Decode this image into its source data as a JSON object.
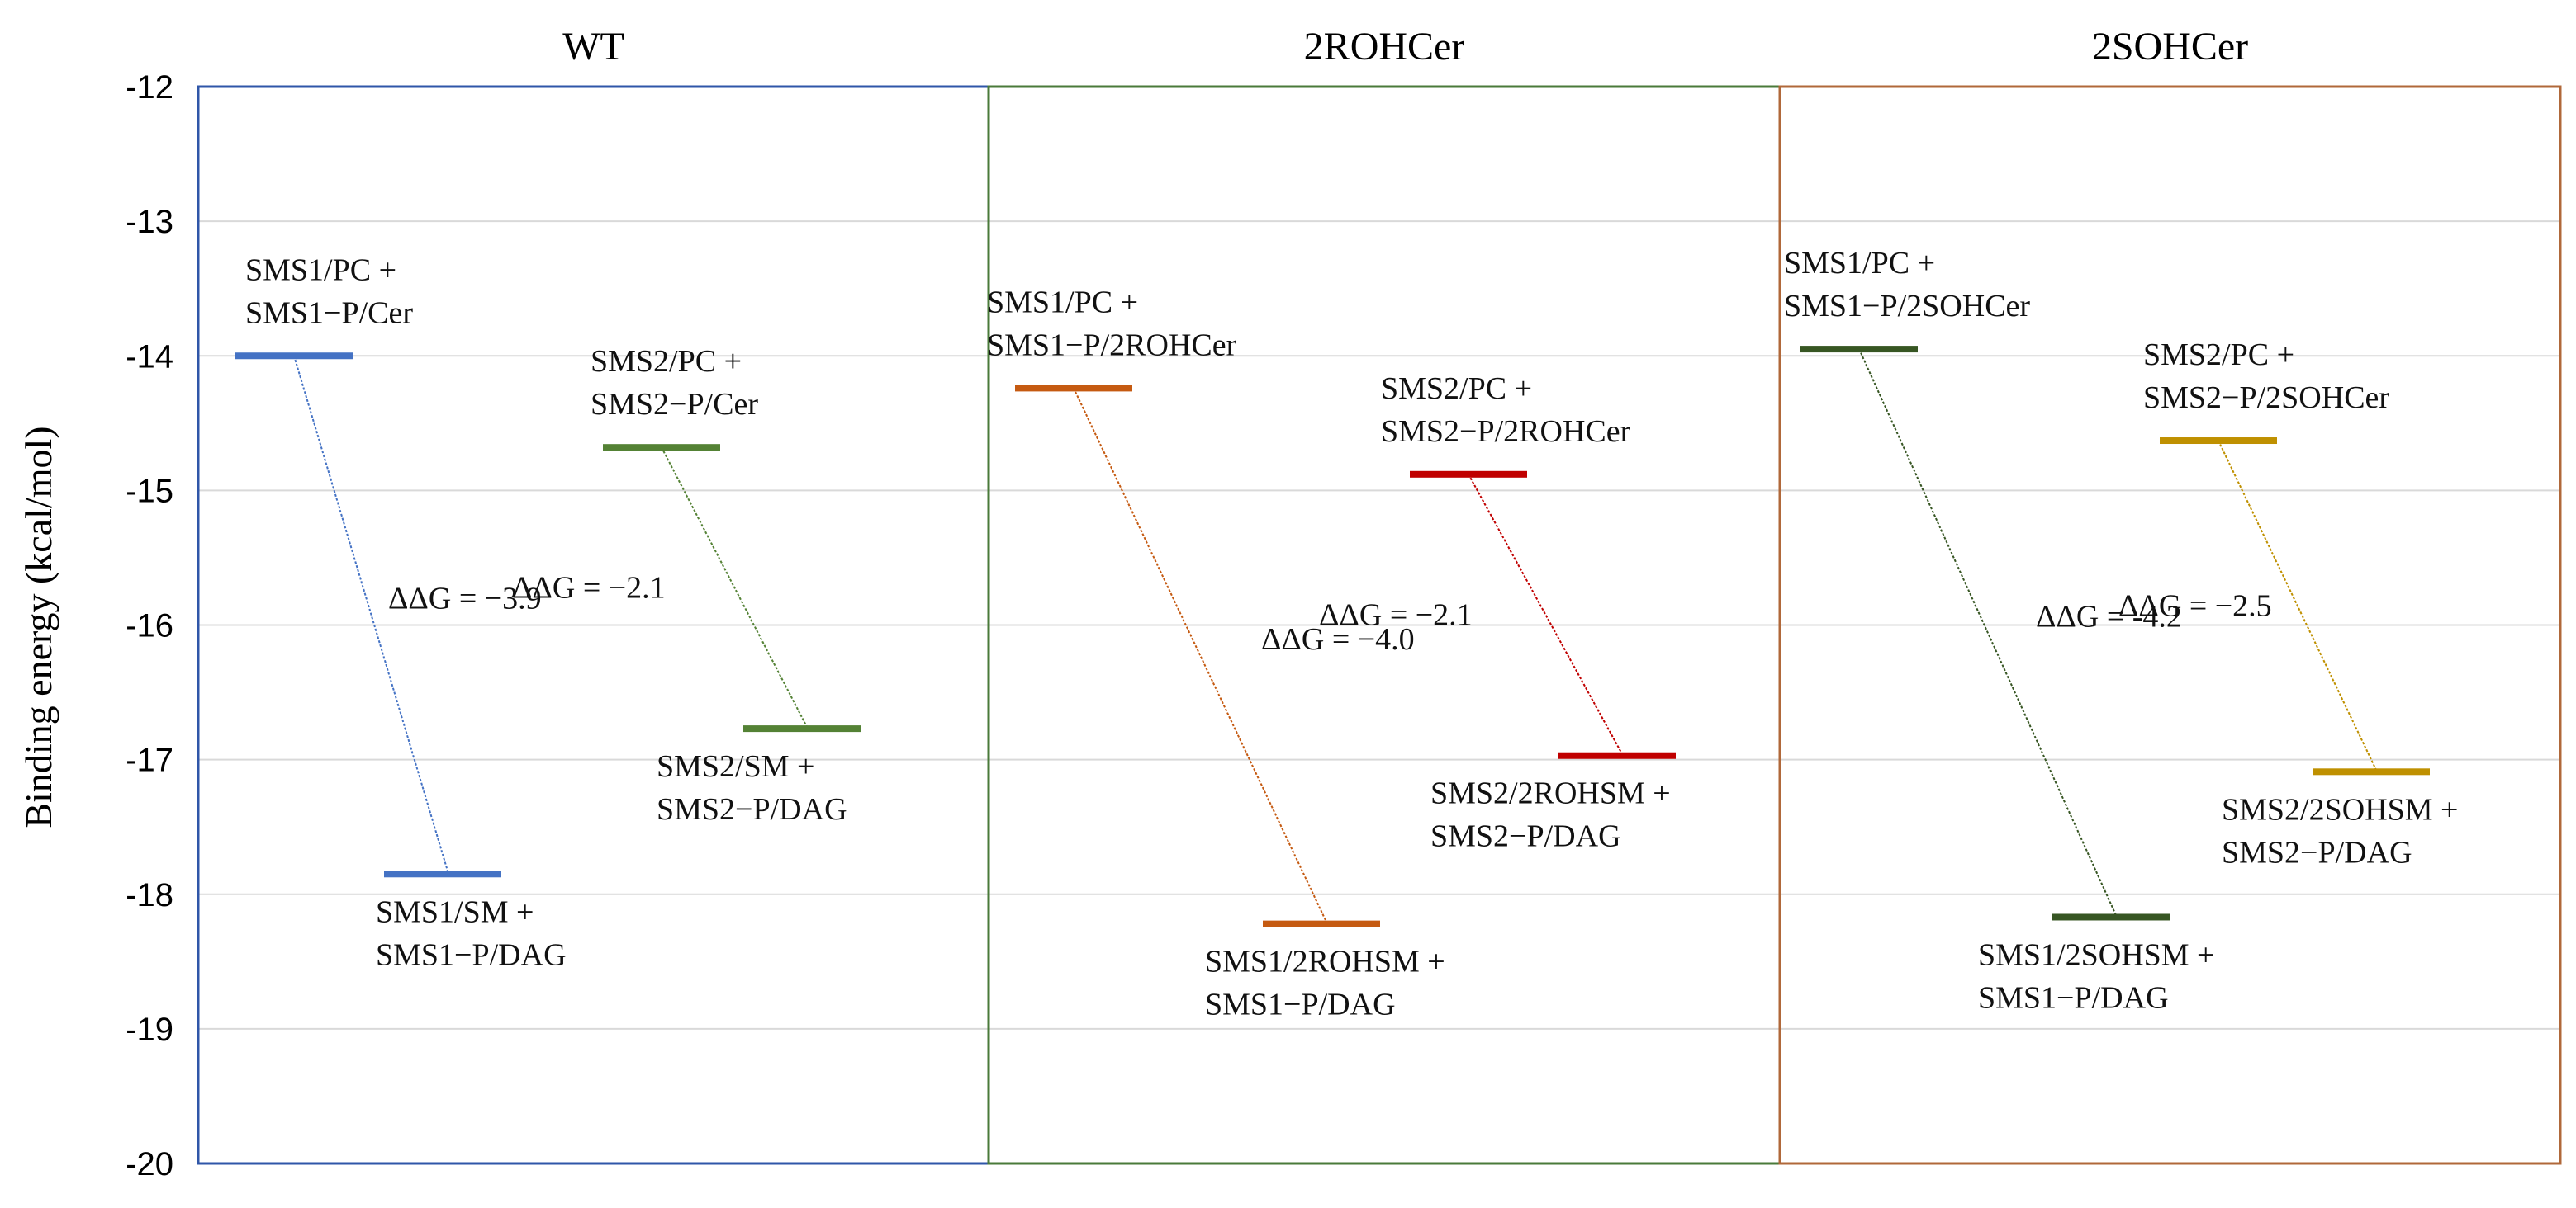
{
  "chart_data": {
    "type": "energy-level diagram",
    "ylabel": "Binding energy (kcal/mol)",
    "ylim": [
      -20,
      -12
    ],
    "yticks": [
      "-12",
      "-13",
      "-14",
      "-15",
      "-16",
      "-17",
      "-18",
      "-19",
      "-20"
    ],
    "ytick_values": [
      -12,
      -13,
      -14,
      -15,
      -16,
      -17,
      -18,
      -19,
      -20
    ],
    "grid": true,
    "panels": [
      {
        "title": "WT",
        "frame_color": "#2f56a8",
        "pairs": [
          {
            "color": "#4472c4",
            "from": {
              "value": -14.0,
              "label_lines": [
                "SMS1/PC +",
                "SMS1−P/Cer"
              ]
            },
            "to": {
              "value": -17.85,
              "label_lines": [
                "SMS1/SM +",
                "SMS1−P/DAG"
              ]
            },
            "ddg": "ΔΔG = −3.9"
          },
          {
            "color": "#548235",
            "from": {
              "value": -14.68,
              "label_lines": [
                "SMS2/PC +",
                "SMS2−P/Cer"
              ]
            },
            "to": {
              "value": -16.77,
              "label_lines": [
                "SMS2/SM +",
                "SMS2−P/DAG"
              ]
            },
            "ddg": "ΔΔG = −2.1"
          }
        ]
      },
      {
        "title": "2ROHCer",
        "frame_color": "#4a7a3a",
        "pairs": [
          {
            "color": "#c55a11",
            "from": {
              "value": -14.24,
              "label_lines": [
                "SMS1/PC +",
                "SMS1−P/2ROHCer"
              ]
            },
            "to": {
              "value": -18.22,
              "label_lines": [
                "SMS1/2ROHSM +",
                "SMS1−P/DAG"
              ]
            },
            "ddg": "ΔΔG = −4.0"
          },
          {
            "color": "#c00000",
            "from": {
              "value": -14.88,
              "label_lines": [
                "SMS2/PC +",
                "SMS2−P/2ROHCer"
              ]
            },
            "to": {
              "value": -16.97,
              "label_lines": [
                "SMS2/2ROHSM +",
                "SMS2−P/DAG"
              ]
            },
            "ddg": "ΔΔG = −2.1"
          }
        ]
      },
      {
        "title": "2SOHCer",
        "frame_color": "#b0683a",
        "pairs": [
          {
            "color": "#375623",
            "from": {
              "value": -13.95,
              "label_lines": [
                "SMS1/PC +",
                "SMS1−P/2SOHCer"
              ]
            },
            "to": {
              "value": -18.17,
              "label_lines": [
                "SMS1/2SOHSM +",
                "SMS1−P/DAG"
              ]
            },
            "ddg": "ΔΔG = -4.2"
          },
          {
            "color": "#bf9000",
            "from": {
              "value": -14.63,
              "label_lines": [
                "SMS2/PC +",
                "SMS2−P/2SOHCer"
              ]
            },
            "to": {
              "value": -17.09,
              "label_lines": [
                "SMS2/2SOHSM +",
                "SMS2−P/DAG"
              ]
            },
            "ddg": "ΔΔG = −2.5"
          }
        ]
      }
    ]
  }
}
